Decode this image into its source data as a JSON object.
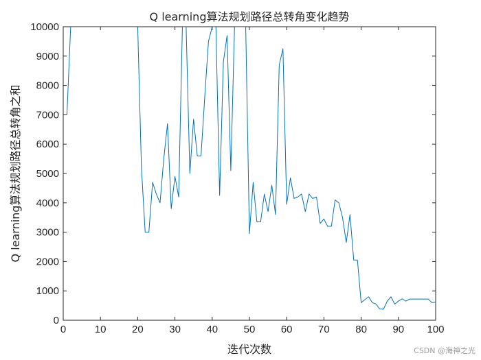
{
  "chart_data": {
    "type": "line",
    "title": "Q learning算法规划路径总转角变化趋势",
    "xlabel": "迭代次数",
    "ylabel": "Q learning算法规划路径总转角之和",
    "xlim": [
      0,
      100
    ],
    "ylim": [
      0,
      10000
    ],
    "xticks": [
      0,
      10,
      20,
      30,
      40,
      50,
      60,
      70,
      80,
      90,
      100
    ],
    "yticks": [
      0,
      1000,
      2000,
      3000,
      4000,
      5000,
      6000,
      7000,
      8000,
      9000,
      10000
    ],
    "grid": false,
    "series": [
      {
        "color": "#0072BD",
        "x": [
          1,
          2,
          3,
          4,
          5,
          6,
          7,
          8,
          9,
          10,
          11,
          12,
          13,
          14,
          15,
          16,
          17,
          18,
          19,
          20,
          21,
          22,
          23,
          24,
          25,
          26,
          27,
          28,
          29,
          30,
          31,
          32,
          33,
          34,
          35,
          36,
          37,
          38,
          39,
          40,
          41,
          42,
          43,
          44,
          45,
          46,
          47,
          48,
          49,
          50,
          51,
          52,
          53,
          54,
          55,
          56,
          57,
          58,
          59,
          60,
          61,
          62,
          63,
          64,
          65,
          66,
          67,
          68,
          69,
          70,
          71,
          72,
          73,
          74,
          75,
          76,
          77,
          78,
          79,
          80,
          81,
          82,
          83,
          84,
          85,
          86,
          87,
          88,
          89,
          90,
          91,
          92,
          93,
          94,
          95,
          96,
          97,
          98,
          99,
          100
        ],
        "y": [
          7000,
          10000,
          10000,
          10000,
          10000,
          10000,
          10000,
          10000,
          10000,
          10000,
          10000,
          10000,
          10000,
          10000,
          10000,
          10000,
          10000,
          10000,
          10000,
          10000,
          5200,
          3000,
          3000,
          4700,
          4300,
          4000,
          5500,
          6700,
          3800,
          4900,
          4200,
          10000,
          10000,
          5000,
          6850,
          5600,
          5600,
          7600,
          9500,
          10000,
          10000,
          4250,
          8800,
          9700,
          5100,
          10000,
          10000,
          10000,
          10000,
          2950,
          4700,
          3350,
          3350,
          4300,
          3700,
          4600,
          3600,
          8700,
          9250,
          3950,
          4850,
          4150,
          4200,
          4300,
          3700,
          4300,
          4150,
          4200,
          3300,
          3450,
          3200,
          3200,
          4100,
          4000,
          3500,
          2650,
          3600,
          2050,
          2050,
          600,
          700,
          800,
          600,
          550,
          380,
          380,
          650,
          800,
          550,
          650,
          730,
          650,
          720,
          720,
          720,
          720,
          720,
          720,
          600,
          620
        ]
      }
    ]
  },
  "watermark": "CSDN @海神之光"
}
